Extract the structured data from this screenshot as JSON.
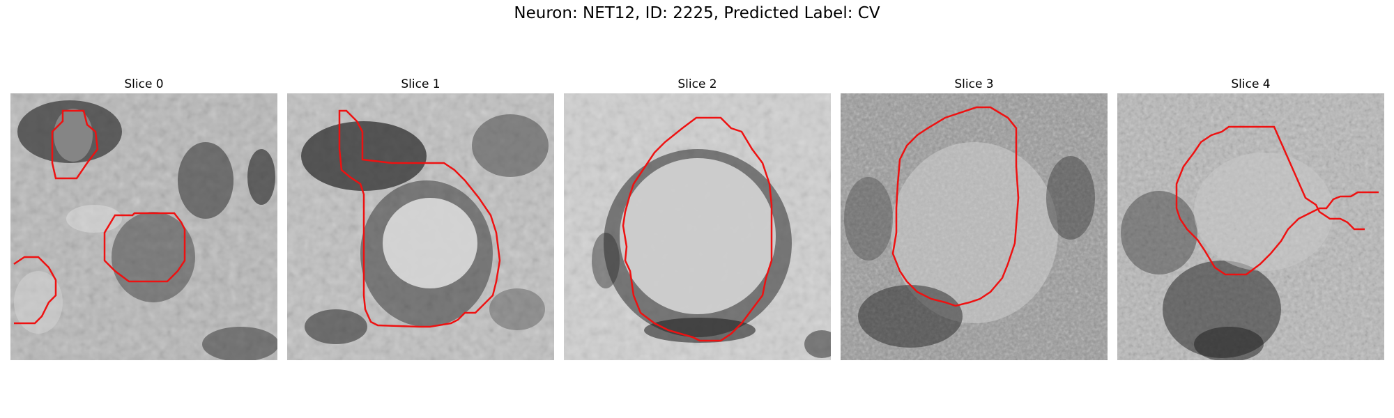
{
  "figure": {
    "title": "Neuron: NET12, ID: 2225, Predicted Label: CV"
  },
  "panels": [
    {
      "title": "Slice 0"
    },
    {
      "title": "Slice 1"
    },
    {
      "title": "Slice 2"
    },
    {
      "title": "Slice 3"
    },
    {
      "title": "Slice 4"
    }
  ],
  "colors": {
    "contour": "#ee1111",
    "background": "#ffffff"
  }
}
